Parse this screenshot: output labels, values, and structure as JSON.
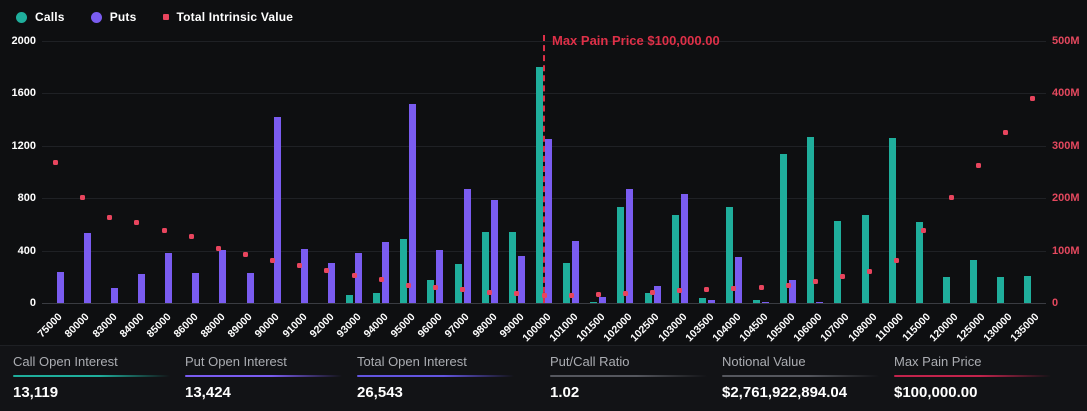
{
  "legend": [
    {
      "label": "Calls",
      "shape": "circle",
      "color": "#1fae9c"
    },
    {
      "label": "Puts",
      "shape": "circle",
      "color": "#7a5cf0"
    },
    {
      "label": "Total Intrinsic Value",
      "shape": "square",
      "color": "#e8455e"
    }
  ],
  "chart_data": {
    "type": "bar",
    "title": "",
    "grid": true,
    "legend_position": "top-left",
    "categories": [
      "75000",
      "80000",
      "83000",
      "84000",
      "85000",
      "86000",
      "88000",
      "89000",
      "90000",
      "91000",
      "92000",
      "93000",
      "94000",
      "95000",
      "96000",
      "97000",
      "98000",
      "99000",
      "100000",
      "101000",
      "101500",
      "102000",
      "102500",
      "103000",
      "103500",
      "104000",
      "104500",
      "105000",
      "106000",
      "107000",
      "108000",
      "110000",
      "115000",
      "120000",
      "125000",
      "130000",
      "135000"
    ],
    "series": [
      {
        "name": "Calls",
        "render": "bar",
        "axis": "left",
        "color": "#1fae9c",
        "values": [
          0,
          0,
          0,
          0,
          0,
          0,
          0,
          0,
          0,
          0,
          0,
          65,
          75,
          490,
          175,
          300,
          545,
          545,
          1800,
          305,
          8,
          730,
          75,
          675,
          35,
          735,
          20,
          1140,
          1270,
          625,
          675,
          1260,
          620,
          200,
          325,
          200,
          205
        ]
      },
      {
        "name": "Puts",
        "render": "bar",
        "axis": "left",
        "color": "#7a5cf0",
        "values": [
          235,
          537,
          112,
          218,
          382,
          230,
          405,
          228,
          1420,
          411,
          302,
          382,
          466,
          1520,
          405,
          870,
          789,
          357,
          1250,
          470,
          48,
          870,
          130,
          830,
          25,
          350,
          10,
          175,
          10,
          0,
          0,
          0,
          0,
          0,
          0,
          0,
          0
        ]
      },
      {
        "name": "Total Intrinsic Value",
        "render": "scatter",
        "axis": "right",
        "color": "#e8455e",
        "unit": "M",
        "values": [
          268,
          202,
          164,
          153,
          139,
          127,
          104,
          93,
          82,
          72,
          63,
          53,
          45,
          34,
          30,
          25,
          21,
          18,
          15,
          15,
          16,
          18,
          20,
          23,
          26,
          28,
          30,
          34,
          42,
          50,
          61,
          82,
          139,
          202,
          262,
          326,
          391
        ]
      }
    ],
    "left_axis": {
      "ticks": [
        0,
        400,
        800,
        1200,
        1600,
        2000
      ],
      "max": 2000,
      "color": "#ffffff"
    },
    "right_axis": {
      "ticks": [
        "0",
        "100M",
        "200M",
        "300M",
        "400M",
        "500M"
      ],
      "max": 500,
      "color": "#e4485e"
    },
    "annotation": {
      "label": "Max Pain Price $100,000.00",
      "category": "100000",
      "color": "#de3048"
    }
  },
  "stats": [
    {
      "label": "Call Open Interest",
      "value": "13,119",
      "underline_color": "#1fae9c"
    },
    {
      "label": "Put Open Interest",
      "value": "13,424",
      "underline_color": "#7a5cf0"
    },
    {
      "label": "Total Open Interest",
      "value": "26,543",
      "underline_color": "#6355e0"
    },
    {
      "label": "Put/Call Ratio",
      "value": "1.02",
      "underline_color": "#55575e"
    },
    {
      "label": "Notional Value",
      "value": "$2,761,922,894.04",
      "underline_color": "#55575e"
    },
    {
      "label": "Max Pain Price",
      "value": "$100,000.00",
      "underline_color": "#c2234c"
    }
  ],
  "stat_column_lefts": [
    13,
    185,
    357,
    550,
    722,
    894
  ]
}
